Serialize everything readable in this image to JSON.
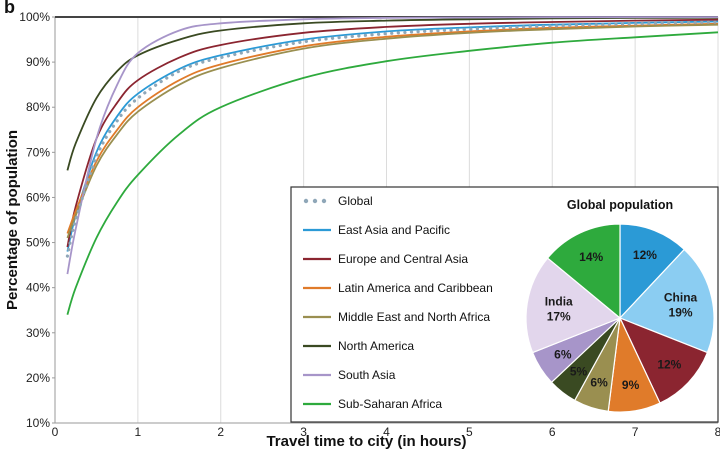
{
  "panel_label": "b",
  "chart_data": [
    {
      "type": "line",
      "xlabel": "Travel time to city (in hours)",
      "ylabel": "Percentage of population",
      "xlim": [
        0,
        8
      ],
      "ylim": [
        10,
        100
      ],
      "x_ticks": [
        "0",
        "1",
        "2",
        "3",
        "4",
        "5",
        "6",
        "7",
        "8"
      ],
      "y_ticks": [
        "10%",
        "20%",
        "30%",
        "40%",
        "50%",
        "60%",
        "70%",
        "80%",
        "90%",
        "100%"
      ],
      "grid": "vertical",
      "legend_position": "bottom-right",
      "x": [
        0.15,
        0.25,
        0.5,
        0.75,
        1,
        1.5,
        2,
        3,
        4,
        5,
        6,
        7,
        8
      ],
      "series": [
        {
          "name": "Global",
          "style": "dotted",
          "color": "#8fa7b8",
          "values": [
            47,
            55,
            69,
            77,
            82,
            88,
            91,
            94.5,
            96.3,
            97.3,
            98,
            98.5,
            98.9
          ]
        },
        {
          "name": "East Asia and Pacific",
          "style": "solid",
          "color": "#2b9ad6",
          "values": [
            48,
            56,
            70,
            78,
            83,
            88.5,
            91.5,
            95,
            96.8,
            97.7,
            98.3,
            98.7,
            99
          ]
        },
        {
          "name": "Europe and Central Asia",
          "style": "solid",
          "color": "#8b2530",
          "values": [
            49,
            58,
            73,
            81,
            86,
            91,
            93.8,
            96.5,
            97.8,
            98.5,
            98.9,
            99.2,
            99.4
          ]
        },
        {
          "name": "Latin America and Caribbean",
          "style": "solid",
          "color": "#e07b2a",
          "values": [
            52,
            57,
            68,
            75,
            80,
            86,
            89.5,
            93.5,
            95.6,
            96.8,
            97.6,
            98.1,
            98.5
          ]
        },
        {
          "name": "Middle East and North Africa",
          "style": "solid",
          "color": "#9a8f50",
          "values": [
            51,
            56,
            67,
            74,
            79,
            85,
            88.7,
            93,
            95.2,
            96.5,
            97.3,
            97.9,
            98.3
          ]
        },
        {
          "name": "North America",
          "style": "solid",
          "color": "#3a4a22",
          "values": [
            66,
            72,
            82,
            88,
            91.5,
            95,
            97,
            98.6,
            99.2,
            99.5,
            99.7,
            99.8,
            99.85
          ]
        },
        {
          "name": "South Asia",
          "style": "solid",
          "color": "#a795c9",
          "values": [
            43,
            53,
            73,
            85,
            92,
            97,
            98.6,
            99.5,
            99.8,
            99.9,
            99.95,
            99.97,
            99.98
          ]
        },
        {
          "name": "Sub-Saharan Africa",
          "style": "solid",
          "color": "#2eaa3d",
          "values": [
            34,
            40,
            51,
            59,
            65,
            74,
            80,
            86.5,
            90.2,
            92.5,
            94.3,
            95.5,
            96.6
          ]
        }
      ]
    },
    {
      "type": "pie",
      "title": "Global population",
      "slices": [
        {
          "label": "",
          "value": 12,
          "display": "12%",
          "color": "#2b9ad6"
        },
        {
          "label": "China",
          "value": 19,
          "display": "19%",
          "color": "#8bcdf2"
        },
        {
          "label": "",
          "value": 12,
          "display": "12%",
          "color": "#8b2530"
        },
        {
          "label": "",
          "value": 9,
          "display": "9%",
          "color": "#e07b2a"
        },
        {
          "label": "",
          "value": 6,
          "display": "6%",
          "color": "#9a8f50"
        },
        {
          "label": "",
          "value": 5,
          "display": "5%",
          "color": "#3a4a22"
        },
        {
          "label": "",
          "value": 6,
          "display": "6%",
          "color": "#a795c9"
        },
        {
          "label": "India",
          "value": 17,
          "display": "17%",
          "color": "#e2d6ec"
        },
        {
          "label": "",
          "value": 14,
          "display": "14%",
          "color": "#2eaa3d"
        }
      ]
    }
  ]
}
